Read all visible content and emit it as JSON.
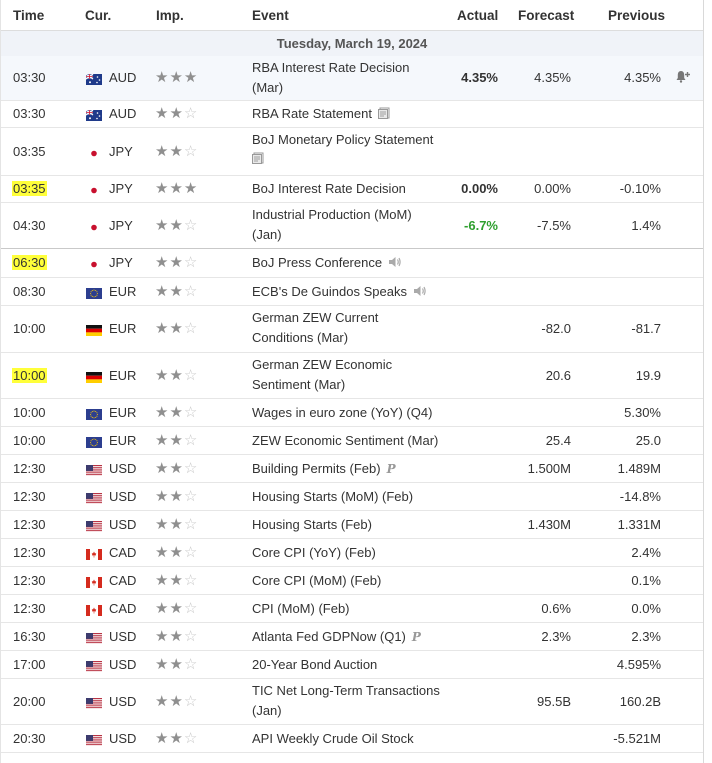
{
  "header": {
    "time": "Time",
    "cur": "Cur.",
    "imp": "Imp.",
    "event": "Event",
    "actual": "Actual",
    "forecast": "Forecast",
    "previous": "Previous"
  },
  "date_label": "Tuesday, March 19, 2024",
  "colors": {
    "highlight": "#ffff3a",
    "actual_green": "#2e9f2e",
    "date_bar": "#f0f3f8"
  },
  "rows": [
    {
      "time": "03:30",
      "cur": "AUD",
      "flag": "au-flag",
      "imp": 3,
      "event_line1": "RBA Interest Rate Decision",
      "event_line2": "(Mar)",
      "actual": "4.35%",
      "forecast": "4.35%",
      "previous": "4.35%"
    },
    {
      "time": "03:30",
      "cur": "AUD",
      "flag": "au-flag",
      "imp": 2,
      "event_line1": "RBA Rate Statement",
      "event_line2": "",
      "actual": "",
      "forecast": "",
      "previous": ""
    },
    {
      "time": "03:35",
      "cur": "JPY",
      "flag": "jp-flag",
      "imp": 2,
      "event_line1": "BoJ Monetary Policy Statement",
      "event_line2": "",
      "actual": "",
      "forecast": "",
      "previous": ""
    },
    {
      "time": "03:35",
      "cur": "JPY",
      "flag": "jp-flag",
      "imp": 3,
      "event_line1": "BoJ Interest Rate Decision",
      "event_line2": "",
      "actual": "0.00%",
      "forecast": "0.00%",
      "previous": "-0.10%"
    },
    {
      "time": "04:30",
      "cur": "JPY",
      "flag": "jp-flag",
      "imp": 2,
      "event_line1": "Industrial Production (MoM)",
      "event_line2": "(Jan)",
      "actual": "-6.7%",
      "forecast": "-7.5%",
      "previous": "1.4%"
    },
    {
      "time": "06:30",
      "cur": "JPY",
      "flag": "jp-flag",
      "imp": 2,
      "event_line1": "BoJ Press Conference",
      "event_line2": "",
      "actual": "",
      "forecast": "",
      "previous": ""
    },
    {
      "time": "08:30",
      "cur": "EUR",
      "flag": "eu-flag",
      "imp": 2,
      "event_line1": "ECB's De Guindos Speaks",
      "event_line2": "",
      "actual": "",
      "forecast": "",
      "previous": ""
    },
    {
      "time": "10:00",
      "cur": "EUR",
      "flag": "de-flag",
      "imp": 2,
      "event_line1": "German ZEW Current",
      "event_line2": "Conditions (Mar)",
      "actual": "",
      "forecast": "-82.0",
      "previous": "-81.7"
    },
    {
      "time": "10:00",
      "cur": "EUR",
      "flag": "de-flag",
      "imp": 2,
      "event_line1": "German ZEW Economic",
      "event_line2": "Sentiment (Mar)",
      "actual": "",
      "forecast": "20.6",
      "previous": "19.9"
    },
    {
      "time": "10:00",
      "cur": "EUR",
      "flag": "eu-flag",
      "imp": 2,
      "event_line1": "Wages in euro zone (YoY) (Q4)",
      "event_line2": "",
      "actual": "",
      "forecast": "",
      "previous": "5.30%"
    },
    {
      "time": "10:00",
      "cur": "EUR",
      "flag": "eu-flag",
      "imp": 2,
      "event_line1": "ZEW Economic Sentiment (Mar)",
      "event_line2": "",
      "actual": "",
      "forecast": "25.4",
      "previous": "25.0"
    },
    {
      "time": "12:30",
      "cur": "USD",
      "flag": "us-flag",
      "imp": 2,
      "event_line1": "Building Permits (Feb)",
      "event_line2": "",
      "actual": "",
      "forecast": "1.500M",
      "previous": "1.489M"
    },
    {
      "time": "12:30",
      "cur": "USD",
      "flag": "us-flag",
      "imp": 2,
      "event_line1": "Housing Starts (MoM) (Feb)",
      "event_line2": "",
      "actual": "",
      "forecast": "",
      "previous": "-14.8%"
    },
    {
      "time": "12:30",
      "cur": "USD",
      "flag": "us-flag",
      "imp": 2,
      "event_line1": "Housing Starts (Feb)",
      "event_line2": "",
      "actual": "",
      "forecast": "1.430M",
      "previous": "1.331M"
    },
    {
      "time": "12:30",
      "cur": "CAD",
      "flag": "ca-flag",
      "imp": 2,
      "event_line1": "Core CPI (YoY) (Feb)",
      "event_line2": "",
      "actual": "",
      "forecast": "",
      "previous": "2.4%"
    },
    {
      "time": "12:30",
      "cur": "CAD",
      "flag": "ca-flag",
      "imp": 2,
      "event_line1": "Core CPI (MoM) (Feb)",
      "event_line2": "",
      "actual": "",
      "forecast": "",
      "previous": "0.1%"
    },
    {
      "time": "12:30",
      "cur": "CAD",
      "flag": "ca-flag",
      "imp": 2,
      "event_line1": "CPI (MoM) (Feb)",
      "event_line2": "",
      "actual": "",
      "forecast": "0.6%",
      "previous": "0.0%"
    },
    {
      "time": "16:30",
      "cur": "USD",
      "flag": "us-flag",
      "imp": 2,
      "event_line1": "Atlanta Fed GDPNow (Q1)",
      "event_line2": "",
      "actual": "",
      "forecast": "2.3%",
      "previous": "2.3%"
    },
    {
      "time": "17:00",
      "cur": "USD",
      "flag": "us-flag",
      "imp": 2,
      "event_line1": "20-Year Bond Auction",
      "event_line2": "",
      "actual": "",
      "forecast": "",
      "previous": "4.595%"
    },
    {
      "time": "20:00",
      "cur": "USD",
      "flag": "us-flag",
      "imp": 2,
      "event_line1": "TIC Net Long-Term Transactions",
      "event_line2": "(Jan)",
      "actual": "",
      "forecast": "95.5B",
      "previous": "160.2B"
    },
    {
      "time": "20:30",
      "cur": "USD",
      "flag": "us-flag",
      "imp": 2,
      "event_line1": "API Weekly Crude Oil Stock",
      "event_line2": "",
      "actual": "",
      "forecast": "",
      "previous": "-5.521M"
    }
  ]
}
